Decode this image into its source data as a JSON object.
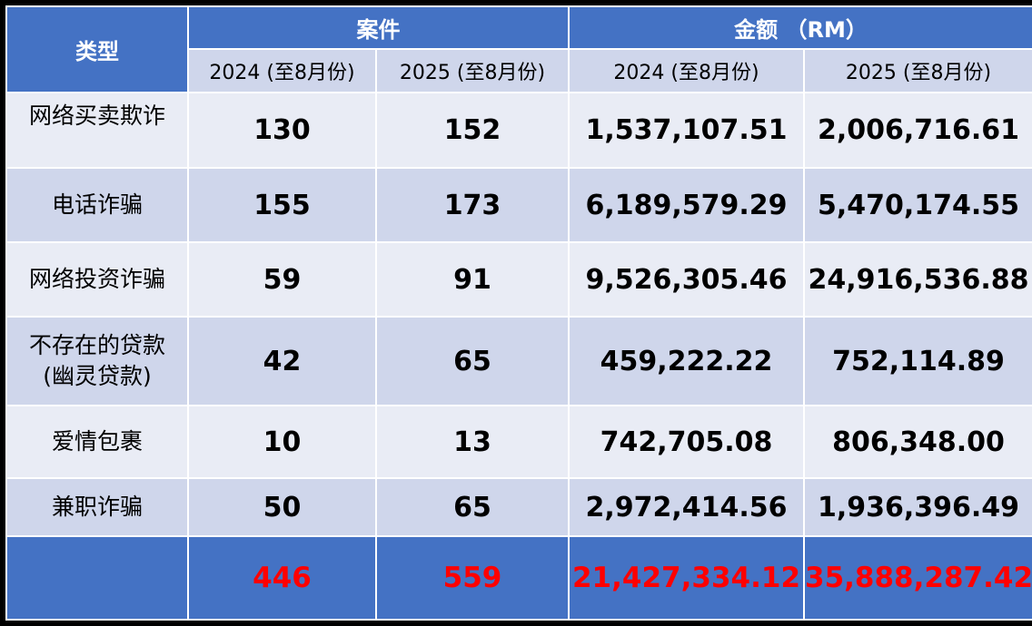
{
  "header": {
    "type_label": "类型",
    "cases_label": "案件",
    "amount_label": "金额 （RM）",
    "sub_labels": [
      "2024 (至8月份)",
      "2025 (至8月份)",
      "2024 (至8月份)",
      "2025 (至8月份)"
    ]
  },
  "rows": [
    {
      "type": "网络买卖欺诈",
      "cases_2024": "130",
      "cases_2025": "152",
      "amount_2024": "1,537,107.51",
      "amount_2025": "2,006,716.61"
    },
    {
      "type": "电话诈骗",
      "cases_2024": "155",
      "cases_2025": "173",
      "amount_2024": "6,189,579.29",
      "amount_2025": "5,470,174.55"
    },
    {
      "type": "网络投资诈骗",
      "cases_2024": "59",
      "cases_2025": "91",
      "amount_2024": "9,526,305.46",
      "amount_2025": "24,916,536.88"
    },
    {
      "type_line1": "不存在的贷款",
      "type_line2": "(幽灵贷款)",
      "cases_2024": "42",
      "cases_2025": "65",
      "amount_2024": "459,222.22",
      "amount_2025": "752,114.89"
    },
    {
      "type": "爱情包裹",
      "cases_2024": "10",
      "cases_2025": "13",
      "amount_2024": "742,705.08",
      "amount_2025": "806,348.00"
    },
    {
      "type": "兼职诈骗",
      "cases_2024": "50",
      "cases_2025": "65",
      "amount_2024": "2,972,414.56",
      "amount_2025": "1,936,396.49"
    }
  ],
  "total": {
    "cases_2024": "446",
    "cases_2025": "559",
    "amount_2024": "21,427,334.12",
    "amount_2025": "35,888,287.42"
  },
  "colors": {
    "header": "#4472c4",
    "row_light": "#e9ecf5",
    "row_dark": "#cfd6eb",
    "total_text": "#ff0000"
  }
}
